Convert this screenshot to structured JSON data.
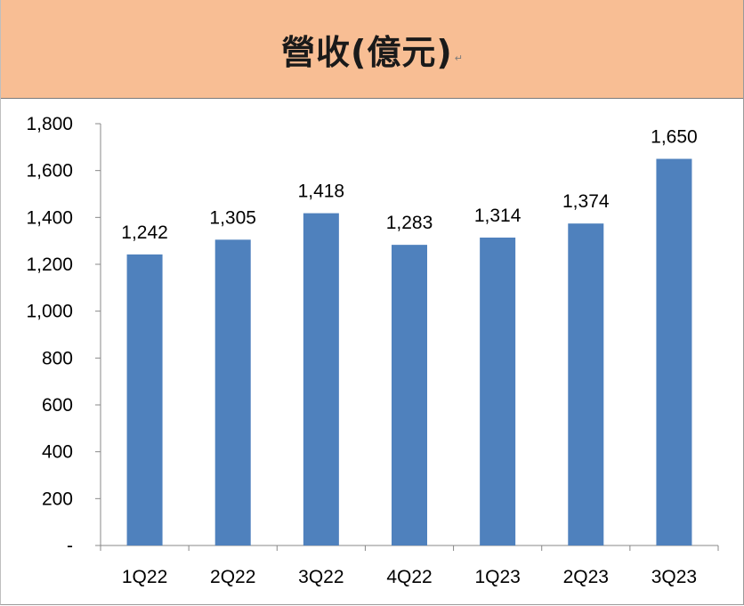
{
  "title": "營收(億元)",
  "paragraph_mark": "↵",
  "colors": {
    "header_bg": "#f8be94",
    "bar": "#4f81bd",
    "axis": "#888888"
  },
  "chart_data": {
    "type": "bar",
    "title": "營收(億元)",
    "categories": [
      "1Q22",
      "2Q22",
      "3Q22",
      "4Q22",
      "1Q23",
      "2Q23",
      "3Q23"
    ],
    "values": [
      1242,
      1305,
      1418,
      1283,
      1314,
      1374,
      1650
    ],
    "data_labels": [
      "1,242",
      "1,305",
      "1,418",
      "1,283",
      "1,314",
      "1,374",
      "1,650"
    ],
    "yticks": [
      0,
      200,
      400,
      600,
      800,
      1000,
      1200,
      1400,
      1600,
      1800
    ],
    "ytick_labels": [
      "-",
      "200",
      "400",
      "600",
      "800",
      "1,000",
      "1,200",
      "1,400",
      "1,600",
      "1,800"
    ],
    "ylim": [
      0,
      1800
    ],
    "xlabel": "",
    "ylabel": "",
    "grid": false,
    "legend": "none"
  }
}
